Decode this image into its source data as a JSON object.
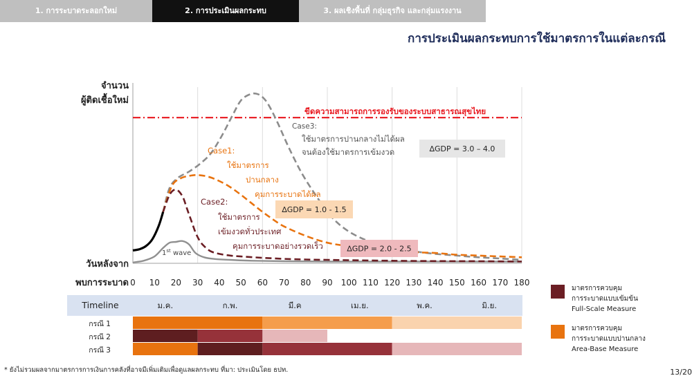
{
  "tabs": [
    {
      "label": "1. การระบาดระลอกใหม่",
      "active": false
    },
    {
      "label": "2. การประเมินผลกระทบ",
      "active": true
    },
    {
      "label": "3. ผลเชิงพื้นที่ กลุ่มธุรกิจ และกลุ่มแรงงาน",
      "active": false
    }
  ],
  "page_title": "การประเมินผลกระทบการใช้มาตรการในแต่ละกรณี",
  "chart_data": {
    "type": "line",
    "ylabel": [
      "จำนวน",
      "ผู้ติดเชื้อใหม่"
    ],
    "xlabel": [
      "วันหลังจาก",
      "พบการระบาด"
    ],
    "xlim": [
      0,
      180
    ],
    "x_ticks": [
      0,
      10,
      20,
      30,
      40,
      50,
      60,
      70,
      80,
      90,
      100,
      110,
      120,
      130,
      140,
      150,
      160,
      170,
      180
    ],
    "capacity_label": "ขีดความสามารถการรองรับของระบบสาธารณสุขไทย",
    "capacity_level": 85,
    "colors": {
      "capacity": "#e8161d",
      "first_wave": "#909090",
      "initial": "#000000",
      "case1": "#e8730f",
      "case2": "#6b1e24",
      "case3": "#8c8c8c"
    },
    "series": [
      {
        "name": "1st wave",
        "style": "solid",
        "color": "first_wave",
        "x": [
          0,
          5,
          10,
          14,
          17,
          20,
          23,
          26,
          29,
          33,
          38,
          45,
          55,
          70,
          90,
          120,
          150,
          180
        ],
        "y": [
          0.5,
          1.5,
          4,
          9,
          12,
          12.5,
          13,
          11,
          6,
          3.5,
          2.5,
          2,
          1.5,
          1.2,
          1,
          1,
          1,
          1
        ]
      },
      {
        "name": "",
        "style": "solid",
        "color": "initial",
        "x": [
          0,
          3,
          6,
          9,
          12,
          14
        ],
        "y": [
          7.5,
          8.2,
          10,
          14,
          22,
          30
        ]
      },
      {
        "name": "Case3",
        "style": "dashed",
        "color": "case3",
        "x": [
          14,
          17,
          21,
          26,
          31,
          36,
          41,
          46,
          50,
          54,
          57,
          60,
          63,
          67,
          72,
          78,
          85,
          92,
          100,
          110,
          120,
          130,
          140,
          150,
          160,
          170,
          180
        ],
        "y": [
          30,
          44,
          50,
          53.5,
          58,
          64,
          74,
          86,
          95,
          98.5,
          99,
          97,
          92,
          82,
          68,
          53,
          39,
          27,
          18.5,
          12.5,
          9,
          7,
          5.5,
          4.5,
          3.5,
          2.8,
          2
        ]
      },
      {
        "name": "Case1",
        "style": "dashed",
        "color": "case1",
        "x": [
          14,
          18,
          22,
          26,
          30,
          35,
          40,
          45,
          50,
          55,
          60,
          65,
          70,
          80,
          90,
          100,
          110,
          120,
          130,
          140,
          150,
          160,
          170,
          180
        ],
        "y": [
          30,
          45,
          49.5,
          51,
          51.5,
          50.5,
          48,
          44.5,
          40,
          35,
          30,
          25.5,
          21.5,
          16,
          12,
          10,
          8.5,
          7.5,
          6.5,
          6,
          5,
          4.5,
          4,
          3.5
        ]
      },
      {
        "name": "Case2",
        "style": "dashed",
        "color": "case2",
        "x": [
          14,
          17,
          20,
          23,
          25,
          27,
          29,
          31,
          33,
          36,
          40,
          45,
          50,
          60,
          70,
          80,
          90,
          100,
          120,
          140,
          160,
          180
        ],
        "y": [
          30,
          40,
          43,
          39,
          32,
          25,
          18,
          13,
          10,
          7,
          5.5,
          4.5,
          4,
          3.2,
          2.6,
          2.2,
          2,
          1.8,
          1.5,
          1.3,
          1.2,
          1
        ]
      }
    ],
    "annotations": {
      "first_wave": {
        "base": "1",
        "sup": "st",
        "text": " wave"
      },
      "case3": {
        "title": "Case3:",
        "lines": [
          "ใช้มาตรการปานกลางไม่ได้ผล",
          "จนต้องใช้มาตรการเข้มงวด"
        ]
      },
      "case1": {
        "title": "Case1:",
        "lines": [
          "ใช้มาตรการ",
          "ปานกลาง",
          "คุมการระบาดได้ผล"
        ]
      },
      "case2": {
        "title": "Case2:",
        "lines": [
          "ใช้มาตรการ",
          "เข้มงวดทั่วประเทศ",
          "คุมการระบาดอย่างรวดเร็ว"
        ]
      }
    },
    "gdp_boxes": [
      {
        "id": "case3",
        "label": "∆GDP = 3.0 – 4.0",
        "bg": "#e6e6e6"
      },
      {
        "id": "case1",
        "label": "∆GDP = 1.0 - 1.5",
        "bg": "#fbd8b4"
      },
      {
        "id": "case2",
        "label": "∆GDP = 2.0 - 2.5",
        "bg": "#efb9bd"
      }
    ]
  },
  "timeline": {
    "label": "Timeline",
    "months": [
      "ม.ค.",
      "ก.พ.",
      "มี.ค",
      "เม.ย.",
      "พ.ค.",
      "มิ.ย."
    ],
    "cases": [
      {
        "label": "กรณี 1",
        "segments": [
          {
            "start": 0,
            "end": 60,
            "color": "#e8730f"
          },
          {
            "start": 60,
            "end": 120,
            "color": "#f59d4c"
          },
          {
            "start": 120,
            "end": 180,
            "color": "#fad3ae"
          }
        ]
      },
      {
        "label": "กรณี 2",
        "segments": [
          {
            "start": 0,
            "end": 30,
            "color": "#5e1e20"
          },
          {
            "start": 30,
            "end": 60,
            "color": "#96323a"
          },
          {
            "start": 60,
            "end": 90,
            "color": "#e6b7b9"
          }
        ]
      },
      {
        "label": "กรณี 3",
        "segments": [
          {
            "start": 0,
            "end": 30,
            "color": "#e8730f"
          },
          {
            "start": 30,
            "end": 60,
            "color": "#5e1e20"
          },
          {
            "start": 60,
            "end": 120,
            "color": "#96323a"
          },
          {
            "start": 120,
            "end": 180,
            "color": "#e6b7b9"
          }
        ]
      }
    ]
  },
  "legend": [
    {
      "swatch": "#6b1e24",
      "lines": [
        "มาตรการควบคุม",
        "การระบาดแบบเข้มข้น",
        "Full-Scale Measure"
      ]
    },
    {
      "swatch": "#e8730f",
      "lines": [
        "มาตรการควบคุม",
        "การระบาดแบบปานกลาง",
        "Area-Base Measure"
      ]
    }
  ],
  "footnote": "* ยังไม่รวมผลจากมาตรการการเงินการคลังที่อาจมีเพิ่มเติมเพื่อดูแลผลกระทบ   ที่มา: ประเมินโดย ธปท.",
  "page_number": "13/20"
}
